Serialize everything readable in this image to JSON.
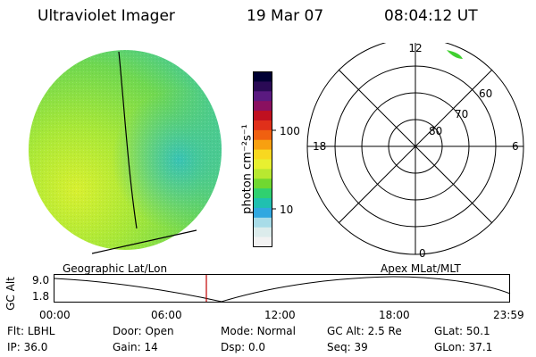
{
  "header": {
    "instrument": "Ultraviolet Imager",
    "date": "19 Mar 07",
    "time": "08:04:12 UT"
  },
  "colorbar": {
    "unit_label": "photon cm⁻²s⁻¹",
    "ticks": [
      "100",
      "10"
    ],
    "colors": [
      "#000033",
      "#2a0a55",
      "#5a1a80",
      "#8a1060",
      "#c01020",
      "#e0301a",
      "#f06010",
      "#f8a010",
      "#f8d820",
      "#e8f030",
      "#b8e830",
      "#70d830",
      "#30d070",
      "#20c0b0",
      "#30a8e0",
      "#a8dce8",
      "#dcecec",
      "#f2f2f2"
    ]
  },
  "polar_plot": {
    "hour_labels": {
      "top": "12",
      "left": "18",
      "right": "6",
      "bottom": "0"
    },
    "lat_labels": [
      "80",
      "70",
      "60"
    ]
  },
  "projection_labels": {
    "left": "Geographic Lat/Lon",
    "right": "Apex MLat/MLT"
  },
  "altitude_plot": {
    "ylabel": "GC Alt",
    "ytick_top": "9.0",
    "ytick_bottom": "1.8",
    "xticks": [
      "00:00",
      "06:00",
      "12:00",
      "18:00",
      "23:59"
    ]
  },
  "status": {
    "row1": [
      {
        "label": "Flt:",
        "value": "LBHL"
      },
      {
        "label": "Door:",
        "value": "Open"
      },
      {
        "label": "Mode:",
        "value": "Normal"
      },
      {
        "label": "GC Alt:",
        "value": "2.5 Re"
      },
      {
        "label": "GLat:",
        "value": "50.1"
      }
    ],
    "row2": [
      {
        "label": "IP:",
        "value": "36.0"
      },
      {
        "label": "Gain:",
        "value": "14"
      },
      {
        "label": "Dsp:",
        "value": "0.0"
      },
      {
        "label": "Seq:",
        "value": "39"
      },
      {
        "label": "GLon:",
        "value": "37.1"
      }
    ]
  }
}
